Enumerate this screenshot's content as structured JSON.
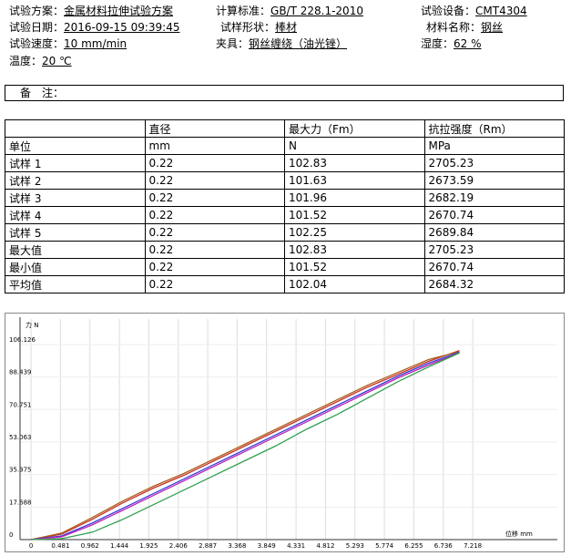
{
  "header": {
    "fields": [
      {
        "label": "试验方案：",
        "value": "金属材料拉伸试验方案"
      },
      {
        "label": "计算标准：",
        "value": "GB/T 228.1-2010"
      },
      {
        "label": "试验设备：",
        "value": "CMT4304"
      },
      {
        "label": "试验日期：",
        "value": "2016-09-15 09:39:45"
      },
      {
        "label": "试样形状：",
        "value": "棒材"
      },
      {
        "label": "材料名称：",
        "value": "钢丝"
      },
      {
        "label": "试验速度：",
        "value": "10 mm/min"
      },
      {
        "label": "夹具：",
        "value": "钢丝缠绕（油光锉）"
      },
      {
        "label": "湿度：",
        "value": "62 %"
      },
      {
        "label": "温度：",
        "value": "20 ℃"
      }
    ]
  },
  "remark": {
    "label": "备　注："
  },
  "table": {
    "columns": [
      "",
      "直径",
      "最大力（Fm）",
      "抗拉强度（Rm）"
    ],
    "rows": [
      [
        "单位",
        "mm",
        "N",
        "MPa"
      ],
      [
        "试样 1",
        "0.22",
        "102.83",
        "2705.23"
      ],
      [
        "试样 2",
        "0.22",
        "101.63",
        "2673.59"
      ],
      [
        "试样 3",
        "0.22",
        "101.96",
        "2682.19"
      ],
      [
        "试样 4",
        "0.22",
        "101.52",
        "2670.74"
      ],
      [
        "试样 5",
        "0.22",
        "102.25",
        "2689.84"
      ],
      [
        "最大值",
        "0.22",
        "102.83",
        "2705.23"
      ],
      [
        "最小值",
        "0.22",
        "101.52",
        "2670.74"
      ],
      [
        "平均值",
        "0.22",
        "102.04",
        "2684.32"
      ]
    ]
  },
  "chart_data": {
    "type": "line",
    "y_label": "力 N",
    "x_label": "位移 mm",
    "xlim": [
      -0.18,
      8.6
    ],
    "ylim": [
      0,
      118
    ],
    "xticks": [
      0,
      0.481,
      0.962,
      1.444,
      1.925,
      2.406,
      2.887,
      3.368,
      3.849,
      4.331,
      4.812,
      5.293,
      5.774,
      6.255,
      6.736,
      7.218
    ],
    "yticks": [
      0,
      17.688,
      35.375,
      53.063,
      70.751,
      88.439,
      106.126
    ],
    "grid": true,
    "x": [
      0,
      0.5,
      1.0,
      1.5,
      2.0,
      2.5,
      3.0,
      3.5,
      4.0,
      4.5,
      5.0,
      5.5,
      6.0,
      6.5,
      7.0
    ],
    "series": [
      {
        "color": "#d03020",
        "values": [
          0,
          3,
          11,
          20,
          28,
          35,
          43,
          51,
          59,
          67,
          75,
          83,
          90,
          97,
          102.8
        ]
      },
      {
        "color": "#a06020",
        "values": [
          0,
          3.5,
          12,
          21,
          29,
          36,
          44,
          52,
          60,
          68,
          76,
          84,
          91,
          98,
          102.2
        ]
      },
      {
        "color": "#3040d0",
        "values": [
          0,
          2,
          9,
          17,
          25,
          33,
          41,
          49,
          57,
          65,
          73,
          81,
          89,
          96,
          101.9
        ]
      },
      {
        "color": "#c020c0",
        "values": [
          0,
          1.5,
          8,
          16,
          24,
          32,
          40,
          48,
          56,
          64,
          72,
          80,
          88,
          95,
          101.6
        ]
      },
      {
        "color": "#30a050",
        "values": [
          0,
          0.5,
          4,
          11,
          19,
          27,
          35,
          43,
          51,
          60,
          68,
          77,
          86,
          94,
          101.5
        ]
      }
    ]
  }
}
